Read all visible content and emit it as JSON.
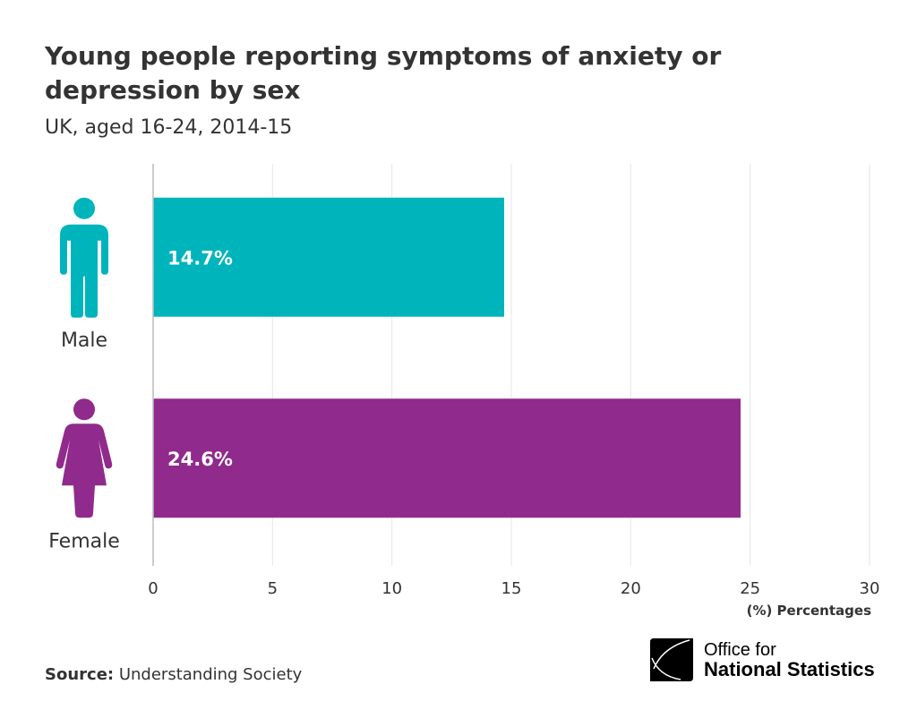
{
  "chart_data": {
    "type": "bar",
    "orientation": "horizontal",
    "title": "Young people reporting symptoms of anxiety or depression by sex",
    "subtitle": "UK, aged 16-24, 2014-15",
    "categories": [
      "Male",
      "Female"
    ],
    "values": [
      14.7,
      24.6
    ],
    "data_labels": [
      "14.7%",
      "24.6%"
    ],
    "colors": [
      "#00b4bc",
      "#902a8c"
    ],
    "icons": [
      "male-figure-icon",
      "female-figure-icon"
    ],
    "xlabel": "(%) Percentages",
    "xlim": [
      0,
      30
    ],
    "xticks": [
      0,
      5,
      10,
      15,
      20,
      25,
      30
    ],
    "grid": true
  },
  "source": {
    "label": "Source:",
    "value": "Understanding Society"
  },
  "logo": {
    "line1": "Office for",
    "line2": "National Statistics"
  }
}
